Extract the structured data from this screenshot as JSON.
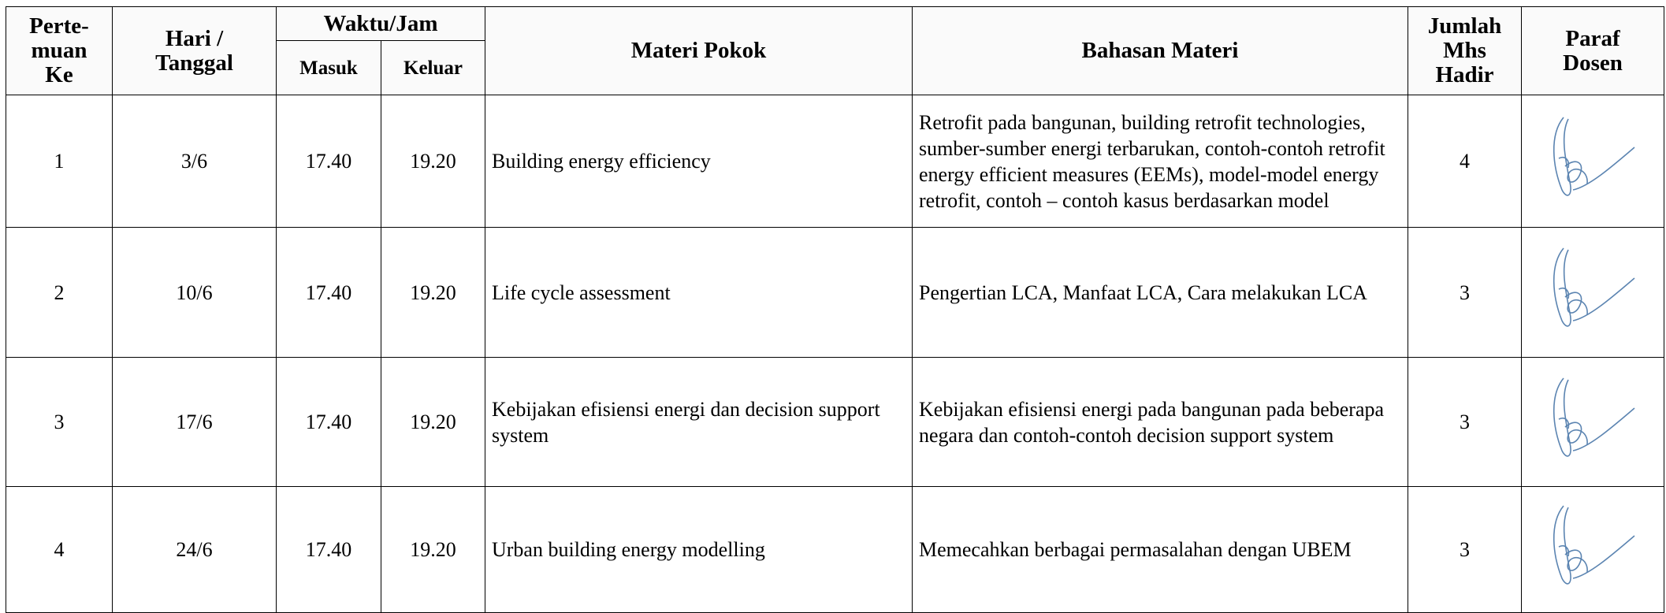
{
  "table": {
    "header": {
      "no": "Perte-\nmuan\nKe",
      "date": "Hari /\nTanggal",
      "time": "Waktu/Jam",
      "in": "Masuk",
      "out": "Keluar",
      "topic": "Materi Pokok",
      "detail": "Bahasan Materi",
      "count": "Jumlah\nMhs\nHadir",
      "sign": "Paraf\nDosen"
    },
    "rows": [
      [
        "1",
        "3/6",
        "17.40",
        "19.20",
        "Building energy efficiency",
        "Retrofit pada bangunan, building retrofit technologies, sumber-sumber energi terbarukan, contoh-contoh retrofit energy efficient measures (EEMs), model-model energy retrofit, contoh – contoh kasus berdasarkan model",
        "4"
      ],
      [
        "2",
        "10/6",
        "17.40",
        "19.20",
        "Life cycle assessment",
        "Pengertian LCA, Manfaat LCA, Cara melakukan LCA",
        "3"
      ],
      [
        "3",
        "17/6",
        "17.40",
        "19.20",
        "Kebijakan efisiensi energi dan decision support system",
        "Kebijakan efisiensi energi pada bangunan pada beberapa negara dan contoh-contoh decision support system",
        "3"
      ],
      [
        "4",
        "24/6",
        "17.40",
        "19.20",
        "Urban building energy modelling",
        "Memecahkan berbagai permasalahan dengan UBEM",
        "3"
      ]
    ]
  }
}
